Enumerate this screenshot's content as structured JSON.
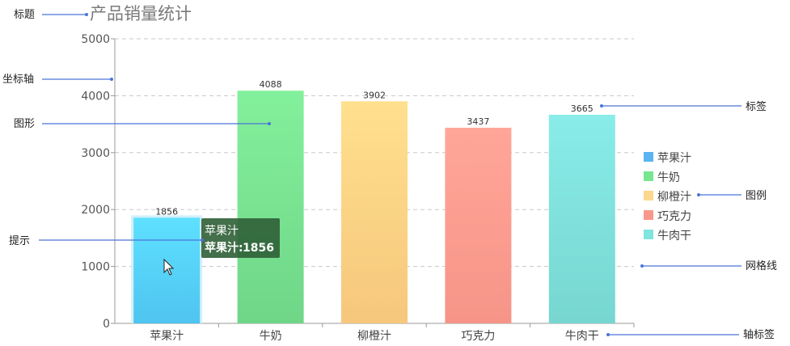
{
  "chart_data": {
    "type": "bar",
    "title": "产品销量统计",
    "categories": [
      "苹果汁",
      "牛奶",
      "柳橙汁",
      "巧克力",
      "牛肉干"
    ],
    "values": [
      1856,
      4088,
      3902,
      3437,
      3665
    ],
    "ylim": [
      0,
      5000
    ],
    "yticks": [
      0,
      1000,
      2000,
      3000,
      4000,
      5000
    ],
    "grid": true,
    "legend_position": "right",
    "colors": [
      [
        "#5ee0ff",
        "#4fc4f0"
      ],
      [
        "#83f09c",
        "#6fd688"
      ],
      [
        "#ffe08e",
        "#f6c77c"
      ],
      [
        "#ffa698",
        "#f69488"
      ],
      [
        "#89ece8",
        "#77d6d0"
      ]
    ],
    "legend_colors": [
      "#5ab4f2",
      "#78e590",
      "#fbd88e",
      "#f9988a",
      "#80e4e0"
    ]
  },
  "tooltip": {
    "title": "苹果汁",
    "label": "苹果汁:",
    "value": "1856"
  },
  "annotations": {
    "title": "标题",
    "axis": "坐标轴",
    "shape": "图形",
    "tooltip": "提示",
    "label": "标签",
    "legend": "图例",
    "gridline": "网格线",
    "axis_label": "轴标签"
  },
  "colors": {
    "annotation_line": "#4a74d8",
    "grid": "#cccccc",
    "axis": "#999999"
  }
}
